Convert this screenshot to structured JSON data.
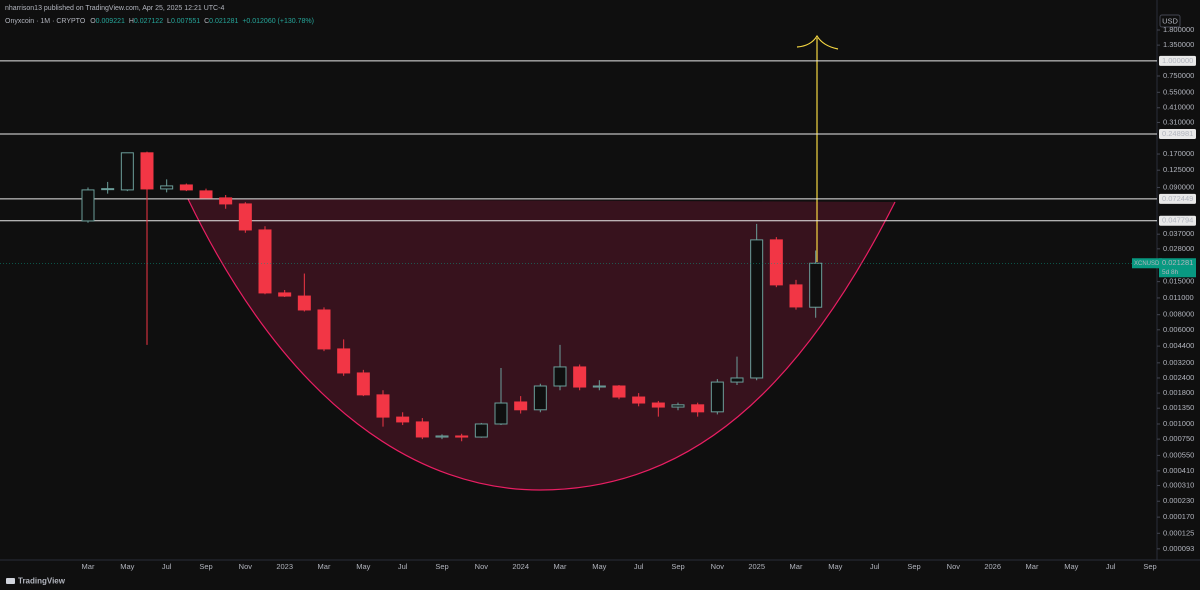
{
  "chart_data": {
    "type": "candlestick",
    "publisher_line": "nharrison13 published on TradingView.com, Apr 25, 2025 12:21 UTC-4",
    "symbol_line": "Onyxcoin · 1M · CRYPTO",
    "ohlc_letters": [
      "O",
      "H",
      "L",
      "C"
    ],
    "change": "+0.012060 (+130.78%)",
    "currency": "USD",
    "symbol": "XCNUSD",
    "countdown": "5d 8h",
    "brand": "TradingView",
    "log_scale": true,
    "grid": false,
    "up_color": "#6b9e9a",
    "down_color": "#f23645",
    "price_line_color": "#089981",
    "hline_color": "#e8e8e8",
    "categories": [
      "Mar",
      null,
      "May",
      null,
      "Jul",
      null,
      "Sep",
      null,
      "Nov",
      null,
      "2023",
      null,
      "Mar",
      null,
      "May",
      null,
      "Jul",
      null,
      "Sep",
      null,
      "Nov",
      null,
      "2024",
      null,
      "Mar",
      null,
      "May",
      null,
      "Jul",
      null,
      "Sep",
      null,
      "Nov",
      null,
      "2025",
      null,
      "Mar",
      null,
      "May",
      null,
      "Jul",
      null,
      "Sep",
      null,
      "Nov",
      null,
      "2026",
      null,
      "Mar",
      null,
      "May",
      null,
      "Jul",
      null,
      "Sep"
    ],
    "open": [
      0.0476,
      0.0875,
      0.0859,
      0.174,
      0.0875,
      0.0944,
      0.0843,
      0.0738,
      0.0658,
      0.0401,
      0.0121,
      0.0114,
      0.00875,
      0.00417,
      0.00264,
      0.00174,
      0.00114,
      0.00104,
      0.00078,
      0.000796,
      0.00078,
      0.001,
      0.00152,
      0.00131,
      0.00206,
      0.00296,
      0.00202,
      0.00206,
      0.00167,
      0.00149,
      0.00138,
      0.00144,
      0.00126,
      0.00222,
      0.0024,
      0.0332,
      0.0141,
      0.009221,
      null,
      null,
      null,
      null,
      null,
      null,
      null,
      null,
      null,
      null,
      null,
      null,
      null,
      null,
      null,
      null,
      null
    ],
    "high": [
      0.09,
      0.1,
      0.174,
      0.178,
      0.105,
      0.097,
      0.088,
      0.078,
      0.068,
      0.043,
      0.0128,
      0.0175,
      0.0092,
      0.005,
      0.0028,
      0.0019,
      0.00125,
      0.00112,
      0.00082,
      0.00083,
      0.00102,
      0.0029,
      0.0017,
      0.00215,
      0.0045,
      0.0031,
      0.0023,
      0.0021,
      0.0018,
      0.00155,
      0.0015,
      0.0015,
      0.00235,
      0.0036,
      0.045,
      0.035,
      0.0155,
      0.027122,
      null,
      null,
      null,
      null,
      null,
      null,
      null,
      null,
      null,
      null,
      null,
      null,
      null,
      null,
      null,
      null,
      null
    ],
    "low": [
      0.046,
      0.08,
      0.084,
      0.0045,
      0.082,
      0.084,
      0.0738,
      0.06,
      0.038,
      0.0118,
      0.0112,
      0.0085,
      0.004,
      0.0025,
      0.0017,
      0.00095,
      0.00098,
      0.00075,
      0.00075,
      0.00072,
      0.00077,
      0.00098,
      0.00122,
      0.00125,
      0.0019,
      0.0019,
      0.0019,
      0.0016,
      0.0014,
      0.00115,
      0.0013,
      0.00115,
      0.0012,
      0.0021,
      0.0023,
      0.0135,
      0.0088,
      0.007551,
      null,
      null,
      null,
      null,
      null,
      null,
      null,
      null,
      null,
      null,
      null,
      null,
      null,
      null,
      null,
      null,
      null
    ],
    "close": [
      0.0859,
      0.088,
      0.174,
      0.0875,
      0.0927,
      0.0859,
      0.0738,
      0.0658,
      0.0401,
      0.0121,
      0.0114,
      0.00875,
      0.00417,
      0.00264,
      0.00174,
      0.00114,
      0.00104,
      0.000781,
      0.000796,
      0.00078,
      0.001,
      0.00149,
      0.00131,
      0.00206,
      0.00296,
      0.00202,
      0.00206,
      0.00167,
      0.00149,
      0.00138,
      0.00144,
      0.00126,
      0.00222,
      0.0024,
      0.0332,
      0.0141,
      0.00927,
      0.021281,
      null,
      null,
      null,
      null,
      null,
      null,
      null,
      null,
      null,
      null,
      null,
      null,
      null,
      null,
      null,
      null,
      null
    ],
    "ylim": [
      7.52e-05,
      2.44
    ],
    "yticks": [
      {
        "value": 1.8,
        "label": "1.800000"
      },
      {
        "value": 1.35,
        "label": "1.350000"
      },
      {
        "value": 0.75,
        "label": "0.750000"
      },
      {
        "value": 0.55,
        "label": "0.550000"
      },
      {
        "value": 0.41,
        "label": "0.410000"
      },
      {
        "value": 0.31,
        "label": "0.310000"
      },
      {
        "value": 0.17,
        "label": "0.170000"
      },
      {
        "value": 0.125,
        "label": "0.125000"
      },
      {
        "value": 0.09,
        "label": "0.090000"
      },
      {
        "value": 0.037,
        "label": "0.037000"
      },
      {
        "value": 0.028,
        "label": "0.028000"
      },
      {
        "value": 0.015,
        "label": "0.015000"
      },
      {
        "value": 0.011,
        "label": "0.011000"
      },
      {
        "value": 0.008,
        "label": "0.008000"
      },
      {
        "value": 0.006,
        "label": "0.006000"
      },
      {
        "value": 0.0044,
        "label": "0.004400"
      },
      {
        "value": 0.0032,
        "label": "0.003200"
      },
      {
        "value": 0.0024,
        "label": "0.002400"
      },
      {
        "value": 0.0018,
        "label": "0.001800"
      },
      {
        "value": 0.00135,
        "label": "0.001350"
      },
      {
        "value": 0.001,
        "label": "0.001000"
      },
      {
        "value": 0.00075,
        "label": "0.000750"
      },
      {
        "value": 0.00055,
        "label": "0.000550"
      },
      {
        "value": 0.00041,
        "label": "0.000410"
      },
      {
        "value": 0.00031,
        "label": "0.000310"
      },
      {
        "value": 0.00023,
        "label": "0.000230"
      },
      {
        "value": 0.00017,
        "label": "0.000170"
      },
      {
        "value": 0.000125,
        "label": "0.000125"
      },
      {
        "value": 9.3e-05,
        "label": "0.000093"
      }
    ],
    "hlines": [
      {
        "value": 1,
        "label": "1.000000"
      },
      0.248981,
      0.072449,
      0.047794
    ]
  }
}
